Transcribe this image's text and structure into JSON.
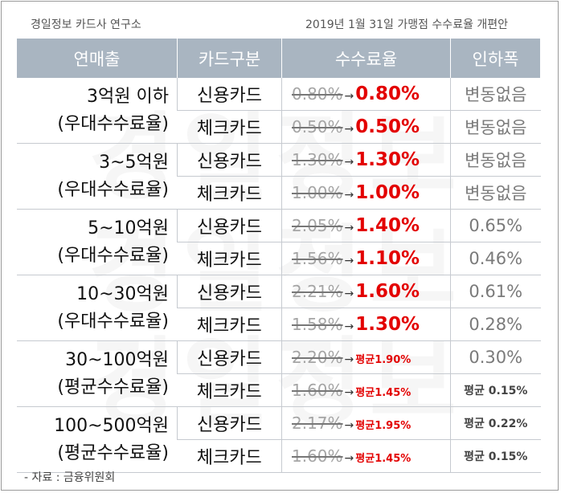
{
  "header": {
    "source_org": "경일정보 카드사 연구소",
    "title": "2019년 1월 31일 가맹점 수수료율 개편안"
  },
  "watermark": "경일정보",
  "table": {
    "columns": [
      "연매출",
      "카드구분",
      "수수료율",
      "인하폭"
    ],
    "groups": [
      {
        "revenue": "3억원 이하",
        "rate_type": "(우대수수료율)",
        "rows": [
          {
            "card": "신용카드",
            "old": "0.80%",
            "new": "0.80%",
            "cut": "변동없음"
          },
          {
            "card": "체크카드",
            "old": "0.50%",
            "new": "0.50%",
            "cut": "변동없음"
          }
        ]
      },
      {
        "revenue": "3~5억원",
        "rate_type": "(우대수수료율)",
        "rows": [
          {
            "card": "신용카드",
            "old": "1.30%",
            "new": "1.30%",
            "cut": "변동없음"
          },
          {
            "card": "체크카드",
            "old": "1.00%",
            "new": "1.00%",
            "cut": "변동없음"
          }
        ]
      },
      {
        "revenue": "5~10억원",
        "rate_type": "(우대수수료율)",
        "rows": [
          {
            "card": "신용카드",
            "old": "2.05%",
            "new": "1.40%",
            "cut": "0.65%"
          },
          {
            "card": "체크카드",
            "old": "1.56%",
            "new": "1.10%",
            "cut": "0.46%"
          }
        ]
      },
      {
        "revenue": "10~30억원",
        "rate_type": "(우대수수료율)",
        "rows": [
          {
            "card": "신용카드",
            "old": "2.21%",
            "new": "1.60%",
            "cut": "0.61%"
          },
          {
            "card": "체크카드",
            "old": "1.58%",
            "new": "1.30%",
            "cut": "0.28%"
          }
        ]
      },
      {
        "revenue": "30~100억원",
        "rate_type": "(평균수수료율)",
        "rows": [
          {
            "card": "신용카드",
            "old": "2.20%",
            "new": "평균1.90%",
            "cut": "0.30%"
          },
          {
            "card": "체크카드",
            "old": "1.60%",
            "new": "평균1.45%",
            "cut": "평균 0.15%"
          }
        ]
      },
      {
        "revenue": "100~500억원",
        "rate_type": "(평균수수료율)",
        "rows": [
          {
            "card": "신용카드",
            "old": "2.17%",
            "new": "평균1.95%",
            "cut": "평균 0.22%"
          },
          {
            "card": "체크카드",
            "old": "1.60%",
            "new": "평균1.45%",
            "cut": "평균 0.15%"
          }
        ]
      }
    ]
  },
  "footer": {
    "source": "- 자료 : 금융위원회"
  },
  "colors": {
    "header_bg": "#a9b5c1",
    "new_rate": "#e30000",
    "old_rate": "#a5a5a5"
  }
}
